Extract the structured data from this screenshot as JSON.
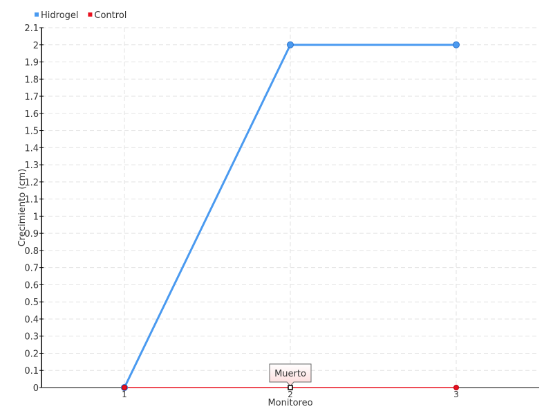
{
  "chart_data": {
    "type": "line",
    "xlabel": "Monitoreo",
    "ylabel": "Crecimiento (cm)",
    "x": [
      1,
      2,
      3
    ],
    "x_tick_labels": [
      "1",
      "2",
      "3"
    ],
    "xlim": [
      0.5,
      3.5
    ],
    "ylim": [
      0,
      2.1
    ],
    "y_tick_labels": [
      "0",
      "0.1",
      "0.2",
      "0.3",
      "0.4",
      "0.5",
      "0.6",
      "0.7",
      "0.8",
      "0.9",
      "1",
      "1.1",
      "1.2",
      "1.3",
      "1.4",
      "1.5",
      "1.6",
      "1.7",
      "1.8",
      "1.9",
      "2",
      "2.1"
    ],
    "grid": true,
    "legend_position": "top-left",
    "series": [
      {
        "name": "Hidrogel",
        "color": "#4a9af0",
        "values": [
          0,
          2,
          2
        ]
      },
      {
        "name": "Control",
        "color": "#e8101e",
        "values": [
          0,
          0,
          0
        ]
      }
    ],
    "annotations": [
      {
        "series": "Control",
        "x": 2,
        "text": "Muerto"
      }
    ]
  }
}
